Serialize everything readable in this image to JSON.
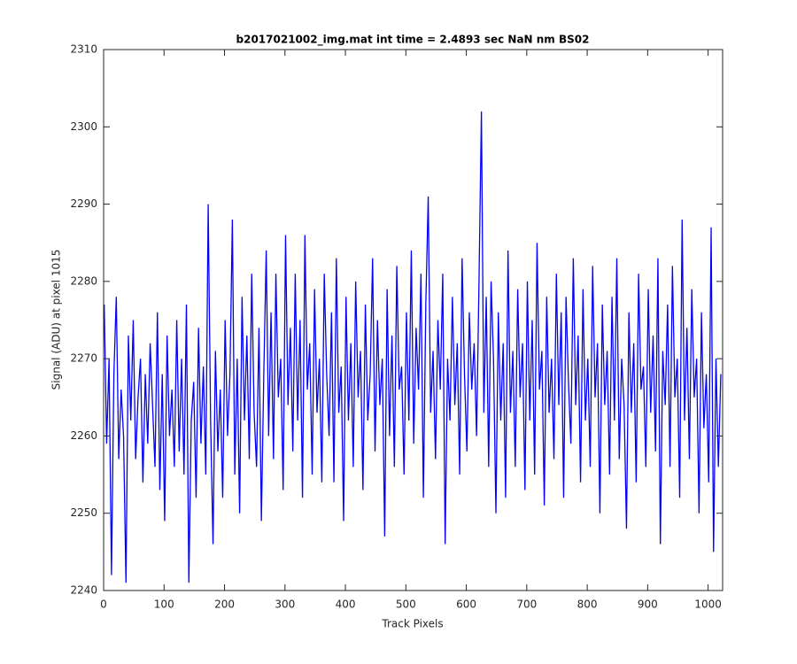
{
  "chart_data": {
    "type": "line",
    "title": "b2017021002_img.mat int time = 2.4893 sec  NaN nm BS02",
    "x_label": "Track Pixels",
    "y_label": "Signal (ADU) at pixel 1015",
    "color": "#0000ff",
    "xlim": [
      0,
      1024
    ],
    "ylim": [
      2240,
      2310
    ],
    "xticks": [
      0,
      100,
      200,
      300,
      400,
      500,
      600,
      700,
      800,
      900,
      1000
    ],
    "yticks": [
      2240,
      2250,
      2260,
      2270,
      2280,
      2290,
      2300,
      2310
    ],
    "x": [
      1,
      5,
      9,
      13,
      17,
      21,
      25,
      29,
      33,
      37,
      41,
      45,
      49,
      53,
      57,
      61,
      65,
      69,
      73,
      77,
      81,
      85,
      89,
      93,
      97,
      101,
      105,
      109,
      113,
      117,
      121,
      125,
      129,
      133,
      137,
      141,
      145,
      149,
      153,
      157,
      161,
      165,
      169,
      173,
      177,
      181,
      185,
      189,
      193,
      197,
      201,
      205,
      209,
      213,
      217,
      221,
      225,
      229,
      233,
      237,
      241,
      245,
      249,
      253,
      257,
      261,
      265,
      269,
      273,
      277,
      281,
      285,
      289,
      293,
      297,
      301,
      305,
      309,
      313,
      317,
      321,
      325,
      329,
      333,
      337,
      341,
      345,
      349,
      353,
      357,
      361,
      365,
      369,
      373,
      377,
      381,
      385,
      389,
      393,
      397,
      401,
      405,
      409,
      413,
      417,
      421,
      425,
      429,
      433,
      437,
      441,
      445,
      449,
      453,
      457,
      461,
      465,
      469,
      473,
      477,
      481,
      485,
      489,
      493,
      497,
      501,
      505,
      509,
      513,
      517,
      521,
      525,
      529,
      533,
      537,
      541,
      545,
      549,
      553,
      557,
      561,
      565,
      569,
      573,
      577,
      581,
      585,
      589,
      593,
      597,
      601,
      605,
      609,
      613,
      617,
      621,
      625,
      629,
      633,
      637,
      641,
      645,
      649,
      653,
      657,
      661,
      665,
      669,
      673,
      677,
      681,
      685,
      689,
      693,
      697,
      701,
      705,
      709,
      713,
      717,
      721,
      725,
      729,
      733,
      737,
      741,
      745,
      749,
      753,
      757,
      761,
      765,
      769,
      773,
      777,
      781,
      785,
      789,
      793,
      797,
      801,
      805,
      809,
      813,
      817,
      821,
      825,
      829,
      833,
      837,
      841,
      845,
      849,
      853,
      857,
      861,
      865,
      869,
      873,
      877,
      881,
      885,
      889,
      893,
      897,
      901,
      905,
      909,
      913,
      917,
      921,
      925,
      929,
      933,
      937,
      941,
      945,
      949,
      953,
      957,
      961,
      965,
      969,
      973,
      977,
      981,
      985,
      989,
      993,
      997,
      1001,
      1005,
      1009,
      1013,
      1017,
      1021
    ],
    "values": [
      2277,
      2259,
      2270,
      2242,
      2268,
      2278,
      2257,
      2266,
      2260,
      2241,
      2273,
      2262,
      2275,
      2257,
      2265,
      2270,
      2254,
      2268,
      2259,
      2272,
      2264,
      2256,
      2276,
      2253,
      2268,
      2249,
      2273,
      2260,
      2266,
      2256,
      2275,
      2258,
      2270,
      2255,
      2277,
      2241,
      2262,
      2267,
      2252,
      2274,
      2259,
      2269,
      2255,
      2290,
      2262,
      2246,
      2271,
      2258,
      2266,
      2252,
      2275,
      2260,
      2268,
      2288,
      2255,
      2270,
      2250,
      2278,
      2262,
      2273,
      2257,
      2281,
      2263,
      2256,
      2274,
      2249,
      2268,
      2284,
      2260,
      2276,
      2257,
      2281,
      2265,
      2270,
      2253,
      2286,
      2264,
      2274,
      2258,
      2281,
      2262,
      2275,
      2252,
      2286,
      2266,
      2272,
      2255,
      2279,
      2263,
      2270,
      2254,
      2281,
      2268,
      2260,
      2276,
      2254,
      2283,
      2263,
      2269,
      2249,
      2278,
      2262,
      2272,
      2256,
      2280,
      2265,
      2271,
      2253,
      2277,
      2262,
      2268,
      2283,
      2258,
      2275,
      2264,
      2270,
      2247,
      2279,
      2260,
      2273,
      2256,
      2282,
      2266,
      2269,
      2255,
      2276,
      2262,
      2284,
      2259,
      2274,
      2266,
      2281,
      2252,
      2277,
      2291,
      2263,
      2271,
      2257,
      2275,
      2266,
      2281,
      2246,
      2270,
      2262,
      2278,
      2264,
      2272,
      2255,
      2283,
      2268,
      2258,
      2276,
      2266,
      2272,
      2260,
      2280,
      2302,
      2263,
      2278,
      2256,
      2280,
      2270,
      2250,
      2276,
      2262,
      2272,
      2252,
      2284,
      2263,
      2271,
      2256,
      2279,
      2265,
      2272,
      2253,
      2280,
      2262,
      2275,
      2255,
      2285,
      2266,
      2271,
      2251,
      2278,
      2263,
      2270,
      2257,
      2281,
      2264,
      2276,
      2252,
      2278,
      2267,
      2259,
      2283,
      2264,
      2273,
      2254,
      2279,
      2262,
      2270,
      2256,
      2282,
      2265,
      2272,
      2250,
      2277,
      2264,
      2271,
      2255,
      2278,
      2262,
      2283,
      2257,
      2270,
      2264,
      2248,
      2276,
      2263,
      2272,
      2254,
      2281,
      2266,
      2269,
      2256,
      2279,
      2263,
      2273,
      2258,
      2283,
      2246,
      2271,
      2264,
      2277,
      2256,
      2282,
      2265,
      2270,
      2252,
      2288,
      2262,
      2274,
      2257,
      2279,
      2265,
      2270,
      2250,
      2276,
      2261,
      2268,
      2254,
      2287,
      2245,
      2270,
      2256,
      2268
    ]
  }
}
